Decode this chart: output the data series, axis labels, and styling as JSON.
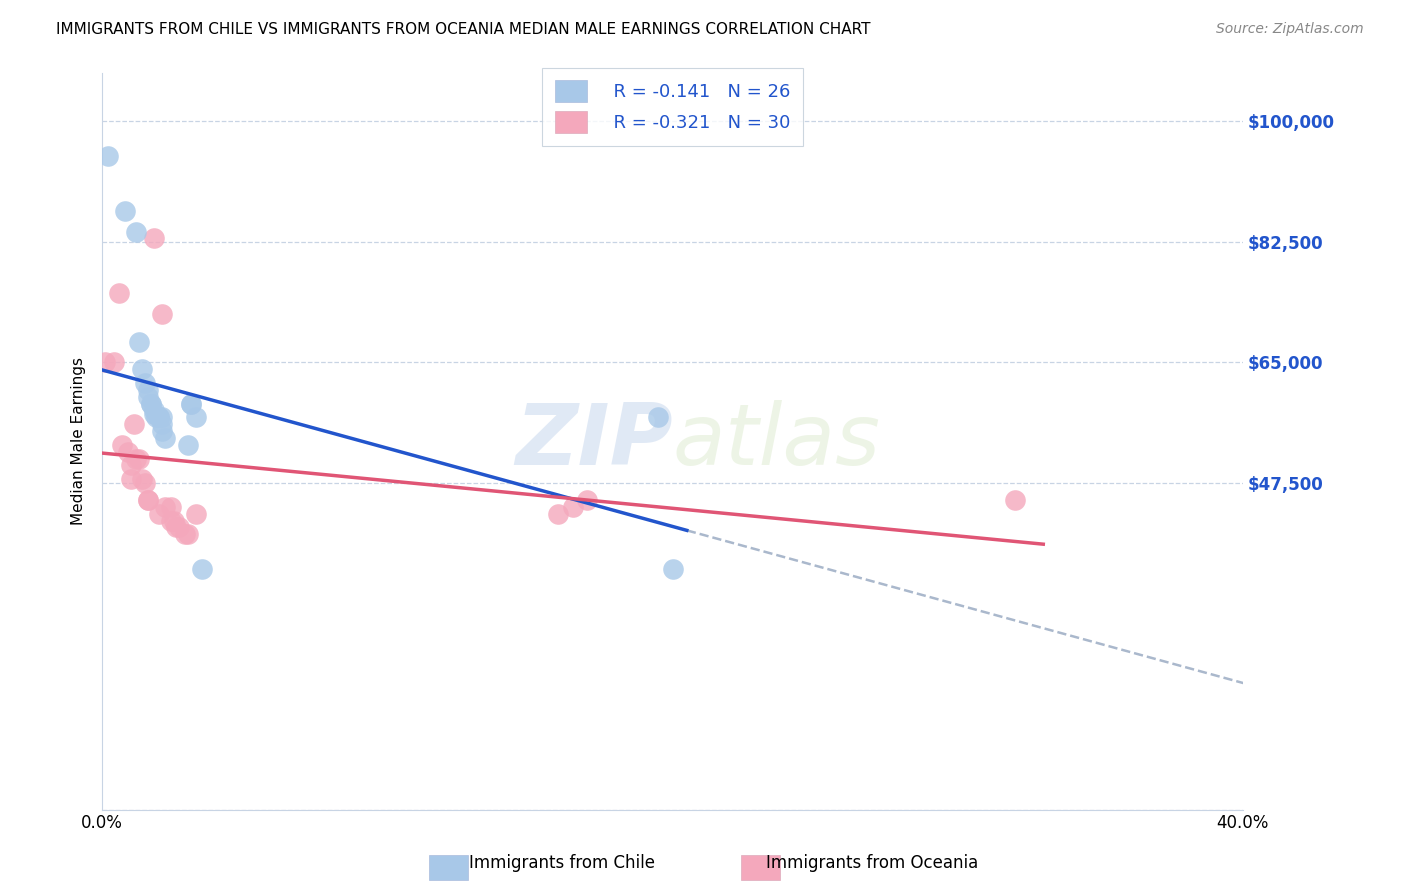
{
  "title": "IMMIGRANTS FROM CHILE VS IMMIGRANTS FROM OCEANIA MEDIAN MALE EARNINGS CORRELATION CHART",
  "source": "Source: ZipAtlas.com",
  "ylabel": "Median Male Earnings",
  "yticks": [
    0,
    47500,
    65000,
    82500,
    100000
  ],
  "ytick_labels": [
    "",
    "$47,500",
    "$65,000",
    "$82,500",
    "$100,000"
  ],
  "xlim": [
    0.0,
    0.4
  ],
  "ylim": [
    0,
    107000
  ],
  "legend_r_chile": "R = -0.141",
  "legend_n_chile": "N = 26",
  "legend_r_oceania": "R = -0.321",
  "legend_n_oceania": "N = 30",
  "color_chile": "#a8c8e8",
  "color_oceania": "#f4a8bc",
  "color_line_chile": "#2255cc",
  "color_line_oceania": "#e05575",
  "color_dashed": "#aab8cc",
  "watermark_zip": "ZIP",
  "watermark_atlas": "atlas",
  "chile_x": [
    0.002,
    0.008,
    0.012,
    0.013,
    0.014,
    0.015,
    0.016,
    0.016,
    0.017,
    0.017,
    0.018,
    0.018,
    0.019,
    0.02,
    0.02,
    0.021,
    0.021,
    0.021,
    0.022,
    0.03,
    0.031,
    0.031,
    0.033,
    0.035,
    0.195,
    0.2
  ],
  "chile_y": [
    95000,
    87000,
    84000,
    68000,
    64000,
    62000,
    61000,
    60000,
    59000,
    59000,
    58000,
    57500,
    57000,
    57000,
    57000,
    57000,
    56000,
    55000,
    54000,
    53000,
    59000,
    59000,
    57000,
    35000,
    57000,
    35000
  ],
  "oceania_x": [
    0.001,
    0.004,
    0.006,
    0.007,
    0.009,
    0.01,
    0.01,
    0.011,
    0.012,
    0.013,
    0.014,
    0.015,
    0.016,
    0.016,
    0.018,
    0.02,
    0.021,
    0.022,
    0.024,
    0.024,
    0.025,
    0.026,
    0.027,
    0.029,
    0.03,
    0.033,
    0.16,
    0.165,
    0.17,
    0.32
  ],
  "oceania_y": [
    65000,
    65000,
    75000,
    53000,
    52000,
    50000,
    48000,
    56000,
    51000,
    51000,
    48000,
    47500,
    45000,
    45000,
    83000,
    43000,
    72000,
    44000,
    44000,
    42000,
    42000,
    41000,
    41000,
    40000,
    40000,
    43000,
    43000,
    44000,
    45000,
    45000
  ]
}
